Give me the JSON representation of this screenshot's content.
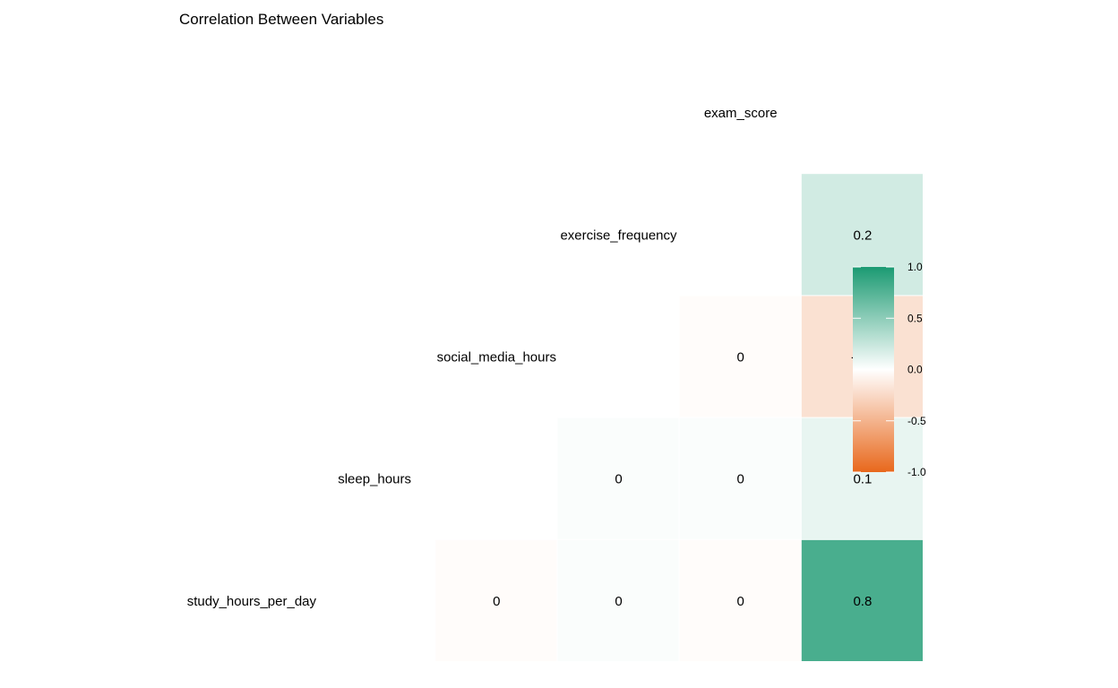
{
  "chart_data": {
    "type": "heatmap",
    "title": "Correlation Between Variables",
    "variables": [
      "study_hours_per_day",
      "sleep_hours",
      "social_media_hours",
      "exercise_frequency",
      "exam_score"
    ],
    "cells": [
      {
        "row": "exercise_frequency",
        "col": "exam_score",
        "value": 0.2,
        "label": "0.2"
      },
      {
        "row": "social_media_hours",
        "col": "exercise_frequency",
        "value": -0.02,
        "label": "0"
      },
      {
        "row": "social_media_hours",
        "col": "exam_score",
        "value": -0.2,
        "label": "-0.2"
      },
      {
        "row": "sleep_hours",
        "col": "social_media_hours",
        "value": 0.02,
        "label": "0"
      },
      {
        "row": "sleep_hours",
        "col": "exercise_frequency",
        "value": 0.02,
        "label": "0"
      },
      {
        "row": "sleep_hours",
        "col": "exam_score",
        "value": 0.1,
        "label": "0.1"
      },
      {
        "row": "study_hours_per_day",
        "col": "sleep_hours",
        "value": -0.02,
        "label": "0"
      },
      {
        "row": "study_hours_per_day",
        "col": "social_media_hours",
        "value": 0.02,
        "label": "0"
      },
      {
        "row": "study_hours_per_day",
        "col": "exercise_frequency",
        "value": -0.02,
        "label": "0"
      },
      {
        "row": "study_hours_per_day",
        "col": "exam_score",
        "value": 0.8,
        "label": "0.8"
      }
    ],
    "colorscale": {
      "low": "#E8681C",
      "mid": "#FFFFFF",
      "high": "#1B9A72",
      "range": [
        -1,
        1
      ]
    },
    "legend": {
      "position": "right",
      "ticks": [
        1.0,
        0.5,
        0.0,
        -0.5,
        -1.0
      ],
      "tick_labels": [
        "1.0",
        "0.5",
        "0.0",
        "-0.5",
        "-1.0"
      ]
    }
  }
}
